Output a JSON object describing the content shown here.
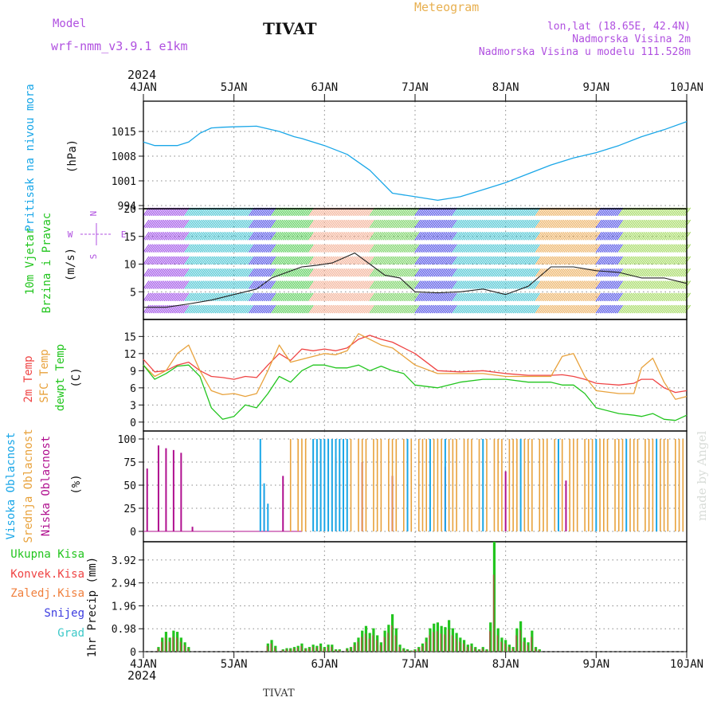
{
  "header": {
    "model_label": "Model",
    "model_name": "wrf-nmm_v3.9.1 e1km",
    "station": "TIVAT",
    "chart_kind": "Meteogram",
    "lonlat": "lon,lat (18.65E, 42.4N)",
    "elevation": "Nadmorska Visina 2m",
    "model_elevation": "Nadmorska Visina u modelu 111.528m",
    "year": "2024",
    "footer_station": "TIVAT",
    "credit": "made by Angel"
  },
  "colors": {
    "pressure": "#1aa7e8",
    "t2m": "#ef4444",
    "sfc": "#e8a23c",
    "dewpoint": "#22c51e",
    "high_cloud": "#1aa7e8",
    "mid_cloud": "#e8a23c",
    "low_cloud": "#b0108f",
    "total_precip": "#22c51e",
    "convective": "#ef4444",
    "frozen": "#f07f3c",
    "snow": "#3b3be0",
    "graupel": "#3cc8c8",
    "wind_label": "#22c51e",
    "compass": "#b050e0"
  },
  "chart_data": {
    "type": "line",
    "x_axis": {
      "start": "2024-01-04T00",
      "end": "2024-01-10T00",
      "tick_labels": [
        "4JAN",
        "5JAN",
        "6JAN",
        "7JAN",
        "8JAN",
        "9JAN",
        "10JAN"
      ]
    },
    "panels": [
      {
        "id": "pressure",
        "ylabel": [
          "Pritisak na nivou mora"
        ],
        "unit": "(hPa)",
        "ylim": [
          994,
          1022
        ],
        "yticks": [
          994,
          1001,
          1008,
          1015
        ],
        "series": [
          {
            "name": "Pritisak na nivou mora",
            "color_key": "pressure",
            "hours": [
              0,
              3,
              6,
              9,
              12,
              15,
              18,
              21,
              24,
              30,
              36,
              40,
              42,
              48,
              54,
              60,
              66,
              72,
              78,
              84,
              90,
              96,
              102,
              108,
              114,
              120,
              126,
              132,
              138,
              144
            ],
            "values": [
              1012,
              1011,
              1011,
              1011,
              1012,
              1014.5,
              1016,
              1016.2,
              1016.3,
              1016.5,
              1015,
              1013.5,
              1013,
              1011,
              1008.5,
              1004,
              997.5,
              996.5,
              995.5,
              996.5,
              998.5,
              1000.5,
              1003,
              1005.5,
              1007.5,
              1009,
              1011,
              1013.5,
              1015.5,
              1017.8
            ]
          }
        ]
      },
      {
        "id": "wind",
        "ylabel": [
          "10m Vjetar",
          "Brzina i Pravac"
        ],
        "unit": "(m/s)",
        "ylim": [
          0,
          20
        ],
        "yticks": [
          5,
          10,
          15,
          20
        ],
        "compass": {
          "north": "N",
          "south": "S",
          "east": "E",
          "west": "W"
        },
        "series": [
          {
            "name": "10m Vjetar",
            "hours": [
              0,
              6,
              12,
              18,
              24,
              30,
              34,
              38,
              42,
              46,
              50,
              56,
              60,
              64,
              68,
              72,
              78,
              84,
              90,
              96,
              102,
              108,
              114,
              120,
              126,
              132,
              138,
              144
            ],
            "values": [
              2.2,
              2.2,
              2.8,
              3.5,
              4.5,
              5.5,
              7.5,
              8.5,
              9.5,
              9.8,
              10.2,
              12,
              10,
              8,
              7.5,
              5,
              4.8,
              5,
              5.5,
              4.5,
              6,
              9.5,
              9.5,
              8.8,
              8.5,
              7.5,
              7.5,
              6.5
            ]
          }
        ],
        "regime_bands": [
          {
            "from_hour": 0,
            "to_hour": 11,
            "color": "#8a2be2"
          },
          {
            "from_hour": 11,
            "to_hour": 28,
            "color": "#22b8c8"
          },
          {
            "from_hour": 28,
            "to_hour": 34,
            "color": "#2c2ce0"
          },
          {
            "from_hour": 34,
            "to_hour": 44,
            "color": "#36c436"
          },
          {
            "from_hour": 44,
            "to_hour": 60,
            "color": "#f0a080"
          },
          {
            "from_hour": 60,
            "to_hour": 72,
            "color": "#5ac840"
          },
          {
            "from_hour": 72,
            "to_hour": 82,
            "color": "#2c2ce0"
          },
          {
            "from_hour": 82,
            "to_hour": 104,
            "color": "#22b8c8"
          },
          {
            "from_hour": 104,
            "to_hour": 120,
            "color": "#e8a040"
          },
          {
            "from_hour": 120,
            "to_hour": 126,
            "color": "#2c2ce0"
          },
          {
            "from_hour": 126,
            "to_hour": 144,
            "color": "#8fd23c"
          }
        ]
      },
      {
        "id": "temperature",
        "ylabel": [
          "2m Temp",
          "SFC Temp",
          "dewpt Temp"
        ],
        "unit": "(C)",
        "ylim": [
          -1,
          17
        ],
        "yticks": [
          0,
          3,
          6,
          9,
          12,
          15
        ],
        "series": [
          {
            "name": "2m Temp",
            "color_key": "t2m",
            "hours": [
              0,
              3,
              6,
              9,
              12,
              15,
              18,
              21,
              24,
              27,
              30,
              33,
              36,
              39,
              42,
              45,
              48,
              51,
              54,
              57,
              60,
              63,
              66,
              69,
              72,
              78,
              84,
              90,
              96,
              102,
              108,
              111,
              114,
              117,
              120,
              126,
              130,
              132,
              135,
              138,
              141,
              144
            ],
            "values": [
              11,
              8.8,
              9,
              10,
              10.5,
              9,
              8,
              7.8,
              7.5,
              8,
              7.8,
              10,
              12,
              10.8,
              12.8,
              12.5,
              12.8,
              12.5,
              13,
              14.5,
              15.2,
              14.5,
              14,
              13,
              12,
              9,
              8.8,
              9,
              8.5,
              8.2,
              8.2,
              8.3,
              8,
              7.5,
              6.8,
              6.5,
              6.8,
              7.5,
              7.5,
              6,
              5.2,
              5.5
            ]
          },
          {
            "name": "SFC Temp",
            "color_key": "sfc",
            "hours": [
              0,
              3,
              6,
              9,
              12,
              15,
              18,
              21,
              24,
              27,
              30,
              33,
              36,
              39,
              42,
              45,
              48,
              51,
              54,
              57,
              60,
              63,
              66,
              69,
              72,
              78,
              84,
              90,
              96,
              102,
              108,
              111,
              114,
              117,
              120,
              126,
              130,
              132,
              135,
              138,
              141,
              144
            ],
            "values": [
              10,
              8,
              9,
              12,
              13.5,
              9,
              5.5,
              4.8,
              5,
              4.5,
              5,
              9,
              13.5,
              10.5,
              11,
              11.5,
              12,
              11.8,
              12.5,
              15.5,
              14.5,
              13.5,
              13,
              11.5,
              10,
              8.5,
              8.5,
              8.5,
              8,
              8,
              8,
              11.5,
              12,
              8,
              5.5,
              5,
              5,
              9.5,
              11.2,
              7,
              4,
              4.5
            ]
          },
          {
            "name": "dewpt Temp",
            "color_key": "dewpoint",
            "hours": [
              0,
              3,
              6,
              9,
              12,
              15,
              18,
              21,
              24,
              27,
              30,
              33,
              36,
              39,
              42,
              45,
              48,
              51,
              54,
              57,
              60,
              63,
              66,
              69,
              72,
              78,
              84,
              90,
              96,
              102,
              108,
              111,
              114,
              117,
              120,
              126,
              130,
              132,
              135,
              138,
              141,
              144
            ],
            "values": [
              10,
              7.5,
              8.5,
              9.8,
              10,
              8,
              2.5,
              0.5,
              1,
              3,
              2.5,
              5,
              8,
              7,
              9,
              10,
              10,
              9.5,
              9.5,
              10,
              9,
              9.8,
              9,
              8.5,
              6.5,
              6,
              7,
              7.5,
              7.5,
              7,
              7,
              6.5,
              6.5,
              5,
              2.5,
              1.5,
              1.2,
              1,
              1.5,
              0.5,
              0.3,
              1.2
            ]
          }
        ]
      },
      {
        "id": "cloud",
        "ylabel": [
          "Visoka Oblacnost",
          "Srednja Oblacnost",
          "Niska Oblacnost"
        ],
        "unit": "(%)",
        "ylim": [
          0,
          100
        ],
        "yticks": [
          0,
          25,
          50,
          75,
          100
        ],
        "series": [
          {
            "name": "Niska Oblacnost",
            "color_key": "low_cloud",
            "hours": [
              1,
              4,
              6,
              8,
              10,
              13,
              32,
              37,
              51,
              58,
              66,
              80,
              96,
              112
            ],
            "values": [
              68,
              93,
              90,
              88,
              85,
              5,
              45,
              60,
              80,
              75,
              60,
              70,
              65,
              55
            ]
          },
          {
            "name": "Srednja Oblacnost",
            "color_key": "mid_cloud",
            "hours_from": 39,
            "hours_to": 144,
            "step": 1,
            "value": 100,
            "skip_mod": 4
          },
          {
            "name": "Visoka Oblacnost",
            "color_key": "high_cloud",
            "hours": [
              31,
              32,
              33,
              45,
              46,
              47,
              48,
              49,
              50,
              51,
              52,
              53,
              54,
              70,
              76,
              80,
              90,
              100,
              110,
              120,
              128,
              136
            ],
            "values": [
              100,
              52,
              30,
              100,
              100,
              100,
              100,
              100,
              100,
              100,
              100,
              100,
              100,
              100,
              100,
              100,
              100,
              100,
              100,
              100,
              100,
              100
            ]
          }
        ]
      },
      {
        "id": "precip",
        "ylabel": [
          "1hr Precip (mm)"
        ],
        "unit": "",
        "ylim": [
          0,
          4.7
        ],
        "yticks": [
          0,
          0.98,
          1.96,
          2.94,
          3.92
        ],
        "legend": [
          "Ukupna Kisa",
          "Konvek.Kisa",
          "Zaledj.Kisa",
          "Snijeg",
          "Grad"
        ],
        "legend_color_keys": [
          "total_precip",
          "convective",
          "frozen",
          "snow",
          "graupel"
        ],
        "series": [
          {
            "name": "Ukupna Kisa",
            "color_key": "total_precip",
            "hours": [
              4,
              5,
              6,
              7,
              8,
              9,
              10,
              11,
              12,
              33,
              34,
              35,
              37,
              38,
              39,
              40,
              41,
              42,
              43,
              44,
              45,
              46,
              47,
              48,
              49,
              50,
              51,
              52,
              54,
              55,
              56,
              57,
              58,
              59,
              60,
              61,
              62,
              63,
              64,
              65,
              66,
              67,
              68,
              69,
              70,
              71,
              72,
              73,
              74,
              75,
              76,
              77,
              78,
              79,
              80,
              81,
              82,
              83,
              84,
              85,
              86,
              87,
              88,
              89,
              90,
              91,
              92,
              93,
              94,
              95,
              96,
              97,
              98,
              99,
              100,
              101,
              102,
              103,
              104,
              105
            ],
            "values": [
              0.2,
              0.6,
              0.85,
              0.6,
              0.9,
              0.85,
              0.6,
              0.4,
              0.2,
              0.35,
              0.5,
              0.25,
              0.1,
              0.15,
              0.15,
              0.2,
              0.25,
              0.35,
              0.15,
              0.2,
              0.3,
              0.25,
              0.35,
              0.2,
              0.3,
              0.3,
              0.1,
              0.1,
              0.15,
              0.2,
              0.4,
              0.6,
              0.9,
              1.1,
              0.8,
              1.0,
              0.7,
              0.4,
              0.9,
              1.15,
              1.6,
              1.0,
              0.3,
              0.15,
              0.1,
              0.05,
              0.1,
              0.2,
              0.35,
              0.6,
              1.0,
              1.2,
              1.25,
              1.1,
              1.05,
              1.35,
              1.0,
              0.8,
              0.6,
              0.5,
              0.3,
              0.35,
              0.2,
              0.1,
              0.2,
              0.1,
              1.25,
              4.7,
              1.0,
              0.6,
              0.5,
              0.3,
              0.2,
              1.0,
              1.3,
              0.6,
              0.4,
              0.9,
              0.2,
              0.1
            ]
          }
        ]
      }
    ]
  }
}
